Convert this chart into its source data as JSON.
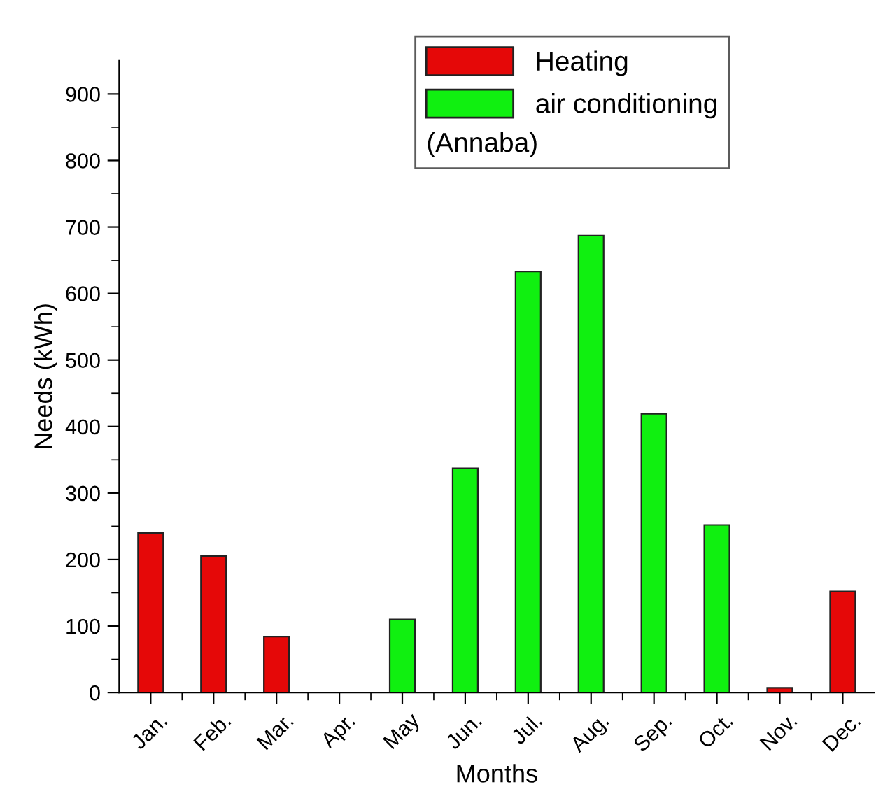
{
  "chart_data": {
    "type": "bar",
    "xlabel": "Months",
    "ylabel": "Needs (kWh)",
    "legend_title": "(Annaba)",
    "categories": [
      "Jan.",
      "Feb.",
      "Mar.",
      "Apr.",
      "May",
      "Jun.",
      "Jul.",
      "Aug.",
      "Sep.",
      "Oct.",
      "Nov.",
      "Dec."
    ],
    "series": [
      {
        "name": "Heating",
        "color": "#e50808",
        "values": [
          240,
          205,
          84,
          null,
          null,
          null,
          null,
          null,
          null,
          null,
          7,
          152
        ]
      },
      {
        "name": "air conditioning",
        "color": "#10f010",
        "values": [
          null,
          null,
          null,
          null,
          110,
          337,
          633,
          687,
          419,
          252,
          null,
          null
        ]
      }
    ],
    "ylim": [
      0,
      950
    ],
    "yticks": [
      0,
      100,
      200,
      300,
      400,
      500,
      600,
      700,
      800,
      900
    ],
    "grid": false,
    "legend": "top"
  }
}
